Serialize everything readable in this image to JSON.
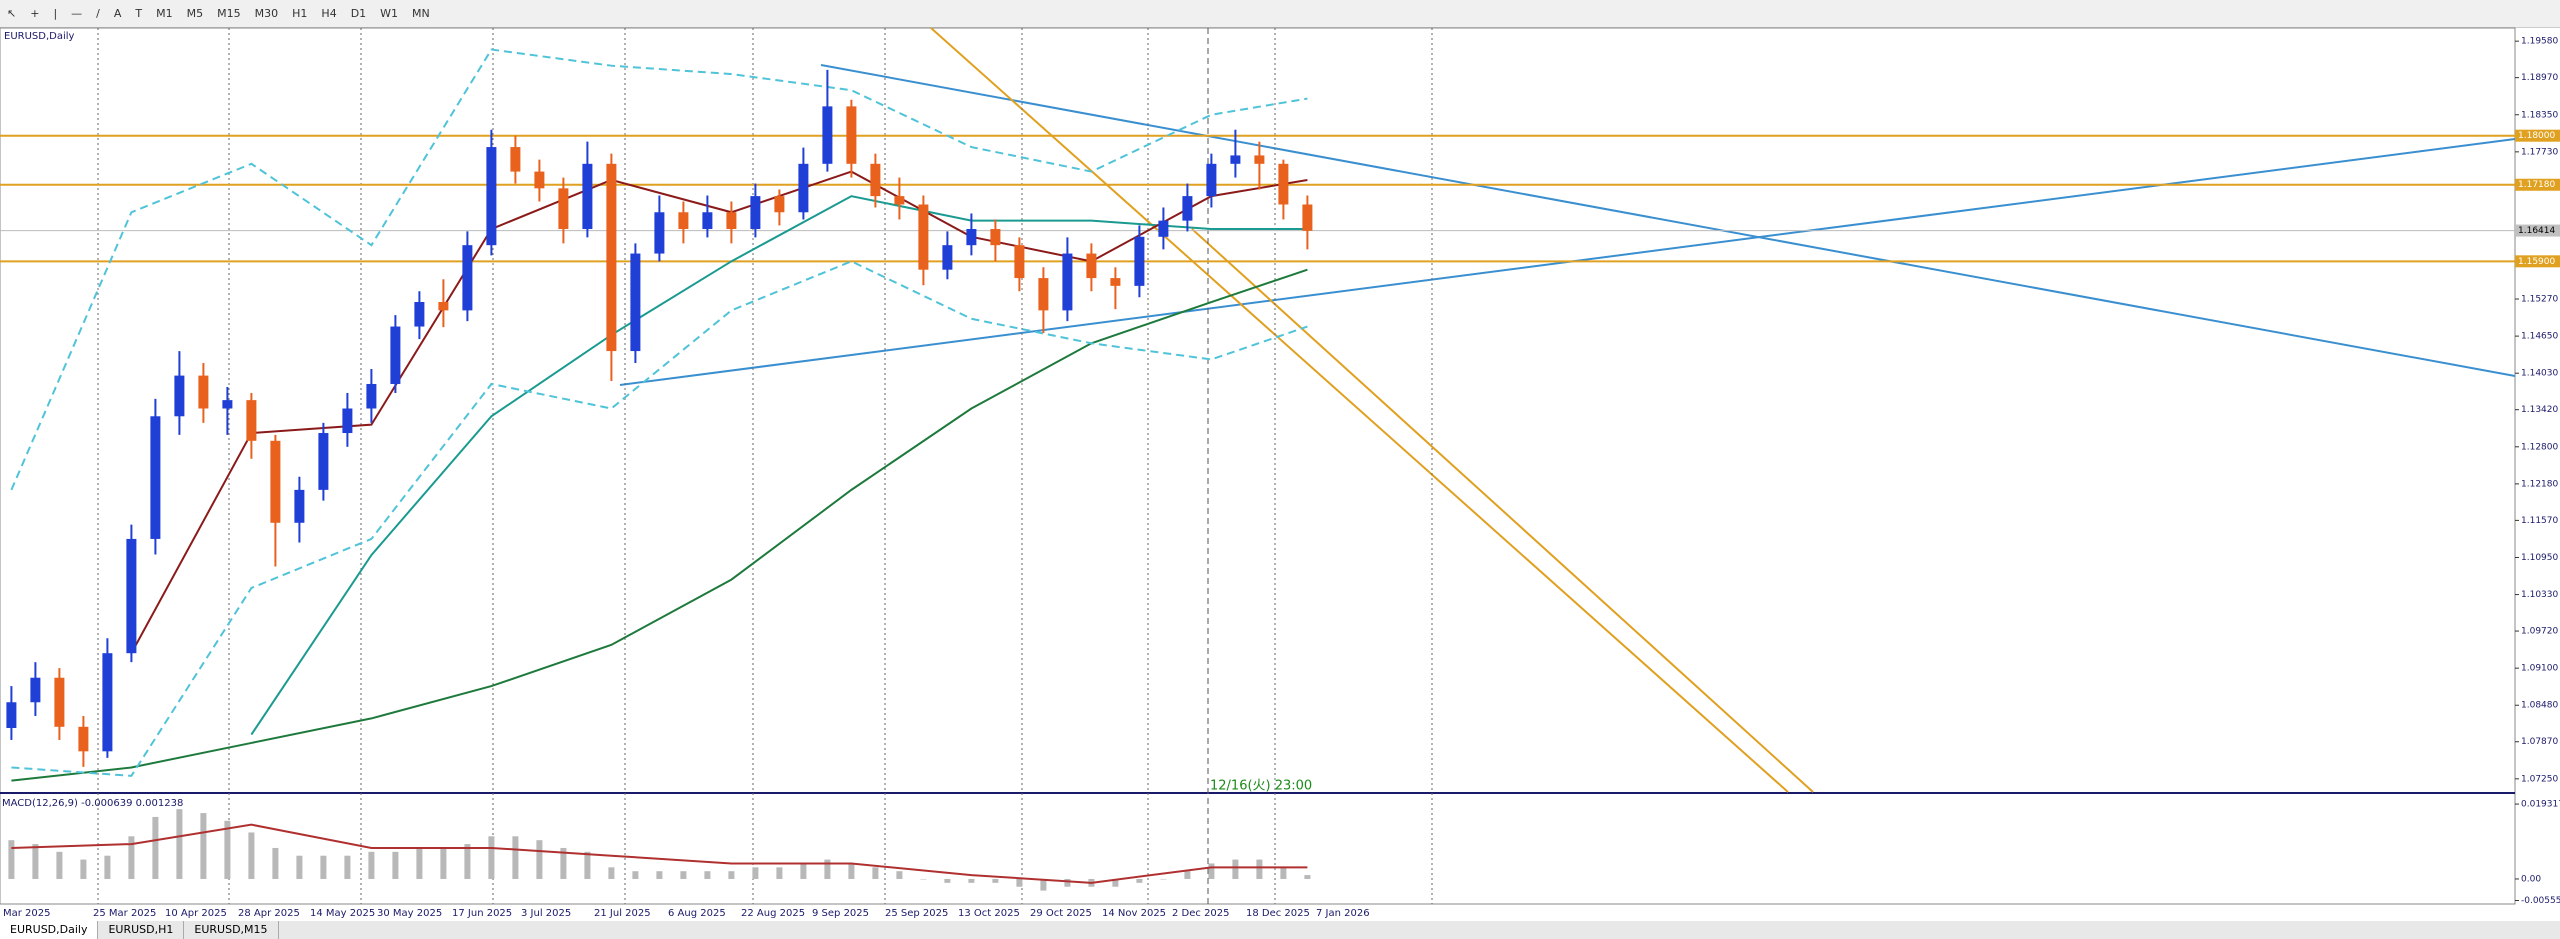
{
  "toolbar": {
    "tools": [
      "A",
      "T"
    ],
    "timeframes": [
      "M1",
      "M5",
      "M15",
      "M30",
      "H1",
      "H4",
      "D1",
      "W1",
      "MN"
    ]
  },
  "chart_data": {
    "type": "candlestick",
    "title": "EURUSD,Daily",
    "date_labels": [
      "Mar 2025",
      "25 Mar 2025",
      "10 Apr 2025",
      "28 Apr 2025",
      "14 May 2025",
      "30 May 2025",
      "17 Jun 2025",
      "3 Jul 2025",
      "21 Jul 2025",
      "6 Aug 2025",
      "22 Aug 2025",
      "9 Sep 2025",
      "25 Sep 2025",
      "13 Oct 2025",
      "29 Oct 2025",
      "14 Nov 2025",
      "2 Dec 2025",
      "18 Dec 2025",
      "7 Jan 2026"
    ],
    "ohlc": [
      [
        1.081,
        1.088,
        1.079,
        1.0853
      ],
      [
        1.0853,
        1.092,
        1.083,
        1.0894
      ],
      [
        1.0894,
        1.091,
        1.079,
        1.0812
      ],
      [
        1.0812,
        1.083,
        1.0745,
        1.0771
      ],
      [
        1.0771,
        1.096,
        1.076,
        1.0935
      ],
      [
        1.0935,
        1.115,
        1.092,
        1.1126
      ],
      [
        1.1126,
        1.136,
        1.11,
        1.1331
      ],
      [
        1.1331,
        1.144,
        1.13,
        1.1399
      ],
      [
        1.1399,
        1.142,
        1.132,
        1.1344
      ],
      [
        1.1344,
        1.138,
        1.13,
        1.1358
      ],
      [
        1.1358,
        1.137,
        1.126,
        1.129
      ],
      [
        1.129,
        1.13,
        1.108,
        1.1153
      ],
      [
        1.1153,
        1.123,
        1.112,
        1.1208
      ],
      [
        1.1208,
        1.132,
        1.119,
        1.1303
      ],
      [
        1.1303,
        1.137,
        1.128,
        1.1344
      ],
      [
        1.1344,
        1.141,
        1.132,
        1.1385
      ],
      [
        1.1385,
        1.15,
        1.137,
        1.1481
      ],
      [
        1.1481,
        1.154,
        1.146,
        1.1522
      ],
      [
        1.1522,
        1.156,
        1.148,
        1.1508
      ],
      [
        1.1508,
        1.164,
        1.149,
        1.1617
      ],
      [
        1.1617,
        1.181,
        1.16,
        1.1781
      ],
      [
        1.1781,
        1.18,
        1.172,
        1.174
      ],
      [
        1.174,
        1.176,
        1.169,
        1.1712
      ],
      [
        1.1712,
        1.173,
        1.162,
        1.1644
      ],
      [
        1.1644,
        1.179,
        1.163,
        1.1753
      ],
      [
        1.1753,
        1.177,
        1.139,
        1.144
      ],
      [
        1.144,
        1.162,
        1.142,
        1.1603
      ],
      [
        1.1603,
        1.17,
        1.159,
        1.1672
      ],
      [
        1.1672,
        1.169,
        1.162,
        1.1644
      ],
      [
        1.1644,
        1.17,
        1.163,
        1.1672
      ],
      [
        1.1672,
        1.169,
        1.162,
        1.1644
      ],
      [
        1.1644,
        1.172,
        1.163,
        1.1699
      ],
      [
        1.1699,
        1.171,
        1.165,
        1.1672
      ],
      [
        1.1672,
        1.178,
        1.166,
        1.1753
      ],
      [
        1.1753,
        1.191,
        1.174,
        1.1849
      ],
      [
        1.1849,
        1.186,
        1.173,
        1.1753
      ],
      [
        1.1753,
        1.177,
        1.168,
        1.1699
      ],
      [
        1.1699,
        1.173,
        1.166,
        1.1685
      ],
      [
        1.1685,
        1.17,
        1.155,
        1.1576
      ],
      [
        1.1576,
        1.164,
        1.156,
        1.1617
      ],
      [
        1.1617,
        1.167,
        1.16,
        1.1644
      ],
      [
        1.1644,
        1.166,
        1.159,
        1.1617
      ],
      [
        1.1617,
        1.163,
        1.154,
        1.1562
      ],
      [
        1.1562,
        1.158,
        1.147,
        1.1508
      ],
      [
        1.1508,
        1.163,
        1.149,
        1.1603
      ],
      [
        1.1603,
        1.162,
        1.154,
        1.1562
      ],
      [
        1.1562,
        1.158,
        1.151,
        1.1549
      ],
      [
        1.1549,
        1.165,
        1.153,
        1.1631
      ],
      [
        1.1631,
        1.168,
        1.161,
        1.1658
      ],
      [
        1.1658,
        1.172,
        1.164,
        1.1699
      ],
      [
        1.1699,
        1.177,
        1.168,
        1.1753
      ],
      [
        1.1753,
        1.181,
        1.173,
        1.1767
      ],
      [
        1.1767,
        1.179,
        1.171,
        1.1753
      ],
      [
        1.1753,
        1.176,
        1.166,
        1.1685
      ],
      [
        1.1685,
        1.17,
        1.161,
        1.1641
      ]
    ],
    "up_color": "#1f3fd6",
    "down_color": "#e8621e",
    "ma_x": [
      0,
      5,
      10,
      15,
      20,
      25,
      30,
      35,
      40,
      45,
      50,
      54
    ],
    "series": [
      {
        "color": "#1e7a3c",
        "dash": false,
        "values": [
          1.0722,
          1.0744,
          1.0785,
          1.0826,
          1.088,
          1.0949,
          1.1058,
          1.1208,
          1.1344,
          1.1453,
          1.1522,
          1.1576
        ]
      },
      {
        "color": "#1a9a90",
        "dash": false,
        "values": [
          null,
          null,
          1.0799,
          1.1099,
          1.1331,
          1.1467,
          1.159,
          1.1699,
          1.1658,
          1.1658,
          1.1644,
          1.1644
        ]
      },
      {
        "color": "#8b1a1a",
        "dash": false,
        "values": [
          null,
          1.0935,
          1.1303,
          1.1317,
          1.1644,
          1.1726,
          1.1672,
          1.174,
          1.1631,
          1.159,
          1.1699,
          1.1726
        ]
      },
      {
        "color": "#4fc3d8",
        "dash": true,
        "values": [
          1.1208,
          1.1672,
          1.1753,
          1.1617,
          1.1944,
          1.1917,
          1.1903,
          1.1876,
          1.1781,
          1.174,
          1.1835,
          1.1862
        ]
      },
      {
        "color": "#4fc3d8",
        "dash": true,
        "values": [
          1.0744,
          1.073,
          1.1044,
          1.1126,
          1.1385,
          1.1344,
          1.1508,
          1.159,
          1.1494,
          1.1453,
          1.1426,
          1.1481
        ]
      }
    ],
    "ylim": [
      1.0703,
      1.198
    ],
    "yticks": [
      {
        "value": 1.1958,
        "label": "1.19580"
      },
      {
        "value": 1.1897,
        "label": "1.18970"
      },
      {
        "value": 1.1835,
        "label": "1.18350"
      },
      {
        "value": 1.1773,
        "label": "1.17730"
      },
      {
        "value": 1.1527,
        "label": "1.15270"
      },
      {
        "value": 1.1465,
        "label": "1.14650"
      },
      {
        "value": 1.1403,
        "label": "1.14030"
      },
      {
        "value": 1.1342,
        "label": "1.13420"
      },
      {
        "value": 1.128,
        "label": "1.12800"
      },
      {
        "value": 1.1218,
        "label": "1.12180"
      },
      {
        "value": 1.1157,
        "label": "1.11570"
      },
      {
        "value": 1.1095,
        "label": "1.10950"
      },
      {
        "value": 1.1033,
        "label": "1.10330"
      },
      {
        "value": 1.0972,
        "label": "1.09720"
      },
      {
        "value": 1.091,
        "label": "1.09100"
      },
      {
        "value": 1.0848,
        "label": "1.08480"
      },
      {
        "value": 1.0787,
        "label": "1.07870"
      },
      {
        "value": 1.0725,
        "label": "1.07250"
      }
    ],
    "levels": [
      {
        "value": 1.18,
        "label": "1.18000"
      },
      {
        "value": 1.1718,
        "label": "1.17180"
      },
      {
        "value": 1.159,
        "label": "1.15900"
      }
    ],
    "level_color": "#e0a020",
    "current_price": 1.16414,
    "crosshair_label": "12/16(火) 23:00",
    "macd": {
      "label": "MACD(12,26,9) -0.000639 0.001238",
      "ylim": [
        -0.0062,
        0.0214
      ],
      "yticks": [
        0.019317,
        {
          "value": 0,
          "label": "0.00"
        },
        -0.005554
      ],
      "histogram": [
        0.01,
        0.009,
        0.007,
        0.005,
        0.006,
        0.011,
        0.016,
        0.018,
        0.017,
        0.015,
        0.012,
        0.008,
        0.006,
        0.006,
        0.006,
        0.007,
        0.007,
        0.008,
        0.008,
        0.009,
        0.011,
        0.011,
        0.01,
        0.008,
        0.007,
        0.003,
        0.002,
        0.002,
        0.002,
        0.002,
        0.002,
        0.003,
        0.003,
        0.004,
        0.005,
        0.004,
        0.003,
        0.002,
        0.0,
        -0.001,
        -0.001,
        -0.001,
        -0.002,
        -0.003,
        -0.002,
        -0.002,
        -0.002,
        -0.001,
        0.0,
        0.002,
        0.004,
        0.005,
        0.005,
        0.003,
        0.001
      ],
      "signal": [
        0.008,
        0.009,
        0.014,
        0.008,
        0.008,
        0.006,
        0.004,
        0.004,
        0.001,
        -0.001,
        0.003,
        0.003
      ]
    }
  },
  "tabs": [
    "EURUSD,Daily",
    "EURUSD,H1",
    "EURUSD,M15"
  ]
}
